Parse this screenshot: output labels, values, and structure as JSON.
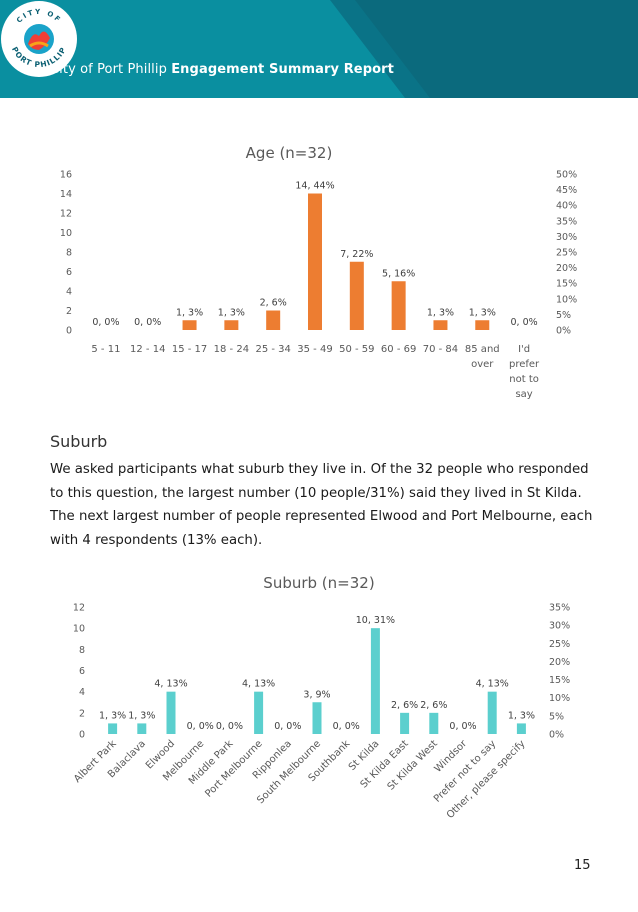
{
  "header": {
    "org": "City of Port Phillip",
    "report": "Engagement Summary Report",
    "logo_top": "CITY OF",
    "logo_bottom": "PORT PHILLIP",
    "colors": {
      "teal": "#0a8fa0",
      "dark_teal": "#0a6f80",
      "light_teal": "#19a7b4"
    }
  },
  "section": {
    "heading": "Suburb",
    "body": "We asked participants what suburb they live in. Of the 32 people who responded to this question, the largest number (10 people/31%) said they lived in St Kilda. The next largest number of people represented Elwood and Port Melbourne, each with 4 respondents (13% each)."
  },
  "page_number": "15",
  "chart_data": [
    {
      "type": "bar",
      "title": "Age (n=32)",
      "color": "#ed7d31",
      "categories": [
        "5 - 11",
        "12 - 14",
        "15 - 17",
        "18 - 24",
        "25 - 34",
        "35 - 49",
        "50 - 59",
        "60 - 69",
        "70 - 84",
        "85 and over",
        "I'd prefer not to say"
      ],
      "category_lines": [
        [
          "5 - 11"
        ],
        [
          "12 - 14"
        ],
        [
          "15 - 17"
        ],
        [
          "18 - 24"
        ],
        [
          "25 - 34"
        ],
        [
          "35 - 49"
        ],
        [
          "50 - 59"
        ],
        [
          "60 - 69"
        ],
        [
          "70 - 84"
        ],
        [
          "85 and",
          "over"
        ],
        [
          "I'd",
          "prefer",
          "not to",
          "say"
        ]
      ],
      "values": [
        0,
        0,
        1,
        1,
        2,
        14,
        7,
        5,
        1,
        1,
        0
      ],
      "data_labels": [
        "0, 0%",
        "0, 0%",
        "1, 3%",
        "1, 3%",
        "2, 6%",
        "14, 44%",
        "7, 22%",
        "5, 16%",
        "1, 3%",
        "1, 3%",
        "0, 0%"
      ],
      "ylim": [
        0,
        16
      ],
      "yticks": [
        "0",
        "2",
        "4",
        "6",
        "8",
        "10",
        "12",
        "14",
        "16"
      ],
      "y2ticks": [
        "0%",
        "5%",
        "10%",
        "15%",
        "20%",
        "25%",
        "30%",
        "35%",
        "40%",
        "45%",
        "50%"
      ],
      "grid": false
    },
    {
      "type": "bar",
      "title": "Suburb (n=32)",
      "color": "#5bcfce",
      "categories": [
        "Albert Park",
        "Balaclava",
        "Elwood",
        "Melbourne",
        "Middle Park",
        "Port Melbourne",
        "Ripponlea",
        "South Melbourne",
        "Southbank",
        "St Kilda",
        "St Kilda East",
        "St Kilda West",
        "Windsor",
        "Prefer not to say",
        "Other, please specify"
      ],
      "values": [
        1,
        1,
        4,
        0,
        0,
        4,
        0,
        3,
        0,
        10,
        2,
        2,
        0,
        4,
        1
      ],
      "data_labels": [
        "1, 3%",
        "1, 3%",
        "4, 13%",
        "0, 0%",
        "0, 0%",
        "4, 13%",
        "0, 0%",
        "3, 9%",
        "0, 0%",
        "10, 31%",
        "2, 6%",
        "2, 6%",
        "0, 0%",
        "4, 13%",
        "1, 3%"
      ],
      "ylim": [
        0,
        12
      ],
      "yticks": [
        "0",
        "2",
        "4",
        "6",
        "8",
        "10",
        "12"
      ],
      "y2ticks": [
        "0%",
        "5%",
        "10%",
        "15%",
        "20%",
        "25%",
        "30%",
        "35%"
      ],
      "grid": false
    }
  ]
}
